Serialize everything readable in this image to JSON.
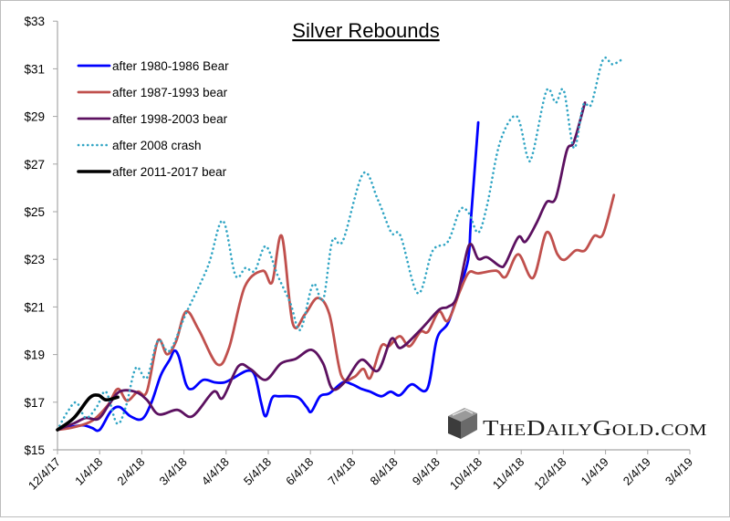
{
  "chart_data": {
    "type": "line",
    "title": "Silver Rebounds",
    "xlabel": "",
    "ylabel": "",
    "x_units": "months since 12/4/17",
    "xlim": [
      0,
      15
    ],
    "ylim": [
      15,
      33
    ],
    "x_ticks": [
      {
        "x": 0,
        "label": "12/4/17"
      },
      {
        "x": 1,
        "label": "1/4/18"
      },
      {
        "x": 2,
        "label": "2/4/18"
      },
      {
        "x": 3,
        "label": "3/4/18"
      },
      {
        "x": 4,
        "label": "4/4/18"
      },
      {
        "x": 5,
        "label": "5/4/18"
      },
      {
        "x": 6,
        "label": "6/4/18"
      },
      {
        "x": 7,
        "label": "7/4/18"
      },
      {
        "x": 8,
        "label": "8/4/18"
      },
      {
        "x": 9,
        "label": "9/4/18"
      },
      {
        "x": 10,
        "label": "10/4/18"
      },
      {
        "x": 11,
        "label": "11/4/18"
      },
      {
        "x": 12,
        "label": "12/4/18"
      },
      {
        "x": 13,
        "label": "1/4/19"
      },
      {
        "x": 14,
        "label": "2/4/19"
      },
      {
        "x": 15,
        "label": "3/4/19"
      }
    ],
    "y_ticks": [
      {
        "y": 15,
        "label": "$15"
      },
      {
        "y": 17,
        "label": "$17"
      },
      {
        "y": 19,
        "label": "$19"
      },
      {
        "y": 21,
        "label": "$21"
      },
      {
        "y": 23,
        "label": "$23"
      },
      {
        "y": 25,
        "label": "$25"
      },
      {
        "y": 27,
        "label": "$27"
      },
      {
        "y": 29,
        "label": "$29"
      },
      {
        "y": 31,
        "label": "$31"
      },
      {
        "y": 33,
        "label": "$33"
      }
    ],
    "grid": false,
    "legend_position": "top-left",
    "series": [
      {
        "name": "after 1980-1986 Bear",
        "color": "#0000ff",
        "style": "solid",
        "points": [
          [
            0,
            15.84
          ],
          [
            0.28,
            15.95
          ],
          [
            0.61,
            16.03
          ],
          [
            0.82,
            15.92
          ],
          [
            1.0,
            15.84
          ],
          [
            1.26,
            16.6
          ],
          [
            1.47,
            16.8
          ],
          [
            1.73,
            16.41
          ],
          [
            2.01,
            16.3
          ],
          [
            2.23,
            16.99
          ],
          [
            2.45,
            18.13
          ],
          [
            2.66,
            18.78
          ],
          [
            2.77,
            19.16
          ],
          [
            2.88,
            18.9
          ],
          [
            3.05,
            17.75
          ],
          [
            3.2,
            17.56
          ],
          [
            3.46,
            17.94
          ],
          [
            3.74,
            17.83
          ],
          [
            3.96,
            17.83
          ],
          [
            4.18,
            18.02
          ],
          [
            4.5,
            18.32
          ],
          [
            4.68,
            18.13
          ],
          [
            4.83,
            16.99
          ],
          [
            4.94,
            16.41
          ],
          [
            5.09,
            17.18
          ],
          [
            5.26,
            17.25
          ],
          [
            5.69,
            17.21
          ],
          [
            5.91,
            16.8
          ],
          [
            6.02,
            16.6
          ],
          [
            6.23,
            17.25
          ],
          [
            6.45,
            17.37
          ],
          [
            6.77,
            17.83
          ],
          [
            6.99,
            17.75
          ],
          [
            7.21,
            17.56
          ],
          [
            7.42,
            17.44
          ],
          [
            7.68,
            17.25
          ],
          [
            7.9,
            17.44
          ],
          [
            8.12,
            17.29
          ],
          [
            8.4,
            17.75
          ],
          [
            8.77,
            17.56
          ],
          [
            9.0,
            19.66
          ],
          [
            9.26,
            20.31
          ],
          [
            9.48,
            21.46
          ],
          [
            9.74,
            22.98
          ],
          [
            9.81,
            24.74
          ],
          [
            9.98,
            28.75
          ]
        ]
      },
      {
        "name": "after 1987-1993 bear",
        "color": "#c0504d",
        "style": "solid",
        "points": [
          [
            0,
            15.84
          ],
          [
            0.39,
            15.95
          ],
          [
            0.82,
            16.22
          ],
          [
            1.19,
            16.87
          ],
          [
            1.43,
            17.56
          ],
          [
            1.65,
            17.06
          ],
          [
            1.9,
            17.44
          ],
          [
            2.12,
            17.44
          ],
          [
            2.38,
            19.58
          ],
          [
            2.6,
            19.01
          ],
          [
            2.81,
            19.54
          ],
          [
            3.05,
            20.81
          ],
          [
            3.35,
            20.04
          ],
          [
            3.79,
            18.59
          ],
          [
            4.07,
            19.28
          ],
          [
            4.44,
            21.84
          ],
          [
            4.87,
            22.52
          ],
          [
            5.09,
            22.03
          ],
          [
            5.32,
            23.98
          ],
          [
            5.58,
            20.31
          ],
          [
            5.87,
            20.69
          ],
          [
            6.17,
            21.38
          ],
          [
            6.45,
            20.69
          ],
          [
            6.73,
            18.13
          ],
          [
            7.03,
            18.05
          ],
          [
            7.25,
            18.4
          ],
          [
            7.42,
            18.02
          ],
          [
            7.68,
            19.35
          ],
          [
            7.86,
            19.35
          ],
          [
            8.12,
            19.77
          ],
          [
            8.35,
            19.35
          ],
          [
            8.61,
            19.96
          ],
          [
            8.79,
            19.96
          ],
          [
            9.05,
            20.81
          ],
          [
            9.26,
            20.42
          ],
          [
            9.55,
            21.68
          ],
          [
            9.76,
            22.45
          ],
          [
            9.98,
            22.41
          ],
          [
            10.41,
            22.52
          ],
          [
            10.63,
            22.26
          ],
          [
            10.93,
            23.21
          ],
          [
            11.28,
            22.22
          ],
          [
            11.6,
            24.13
          ],
          [
            11.86,
            23.21
          ],
          [
            12.03,
            22.98
          ],
          [
            12.29,
            23.37
          ],
          [
            12.51,
            23.37
          ],
          [
            12.73,
            23.98
          ],
          [
            12.94,
            24.05
          ],
          [
            13.2,
            25.7
          ]
        ]
      },
      {
        "name": "after 1998-2003 bear",
        "color": "#5c1160",
        "style": "solid",
        "points": [
          [
            0,
            15.84
          ],
          [
            0.39,
            16.11
          ],
          [
            0.67,
            16.34
          ],
          [
            0.97,
            16.3
          ],
          [
            1.21,
            16.87
          ],
          [
            1.47,
            17.44
          ],
          [
            1.84,
            17.44
          ],
          [
            2.12,
            17.1
          ],
          [
            2.4,
            16.49
          ],
          [
            2.84,
            16.68
          ],
          [
            3.2,
            16.41
          ],
          [
            3.7,
            17.44
          ],
          [
            3.92,
            17.18
          ],
          [
            4.29,
            18.51
          ],
          [
            4.57,
            18.4
          ],
          [
            4.94,
            17.94
          ],
          [
            5.3,
            18.63
          ],
          [
            5.65,
            18.82
          ],
          [
            6.02,
            19.2
          ],
          [
            6.3,
            18.63
          ],
          [
            6.52,
            17.56
          ],
          [
            6.82,
            17.86
          ],
          [
            7.21,
            18.78
          ],
          [
            7.6,
            18.32
          ],
          [
            7.92,
            19.66
          ],
          [
            8.14,
            19.28
          ],
          [
            8.61,
            20.04
          ],
          [
            9.05,
            20.88
          ],
          [
            9.26,
            21.0
          ],
          [
            9.48,
            21.46
          ],
          [
            9.76,
            23.59
          ],
          [
            9.98,
            23.02
          ],
          [
            10.19,
            23.09
          ],
          [
            10.5,
            22.71
          ],
          [
            10.63,
            22.83
          ],
          [
            10.93,
            23.93
          ],
          [
            11.1,
            23.74
          ],
          [
            11.36,
            24.51
          ],
          [
            11.6,
            25.39
          ],
          [
            11.82,
            25.58
          ],
          [
            12.08,
            27.56
          ],
          [
            12.25,
            27.94
          ],
          [
            12.51,
            29.58
          ]
        ]
      },
      {
        "name": "after 2008 crash",
        "color": "#31a5c4",
        "style": "dotted",
        "points": [
          [
            0,
            15.84
          ],
          [
            0.24,
            16.6
          ],
          [
            0.45,
            16.99
          ],
          [
            0.67,
            16.34
          ],
          [
            0.93,
            16.8
          ],
          [
            1.15,
            17.44
          ],
          [
            1.41,
            16.11
          ],
          [
            1.62,
            16.8
          ],
          [
            1.86,
            18.44
          ],
          [
            2.12,
            18.02
          ],
          [
            2.38,
            19.58
          ],
          [
            2.66,
            19.16
          ],
          [
            3.05,
            20.73
          ],
          [
            3.57,
            22.71
          ],
          [
            3.92,
            24.62
          ],
          [
            4.22,
            22.33
          ],
          [
            4.46,
            22.64
          ],
          [
            4.68,
            22.52
          ],
          [
            4.94,
            23.55
          ],
          [
            5.22,
            22.33
          ],
          [
            5.52,
            21.18
          ],
          [
            5.76,
            20.04
          ],
          [
            6.06,
            21.95
          ],
          [
            6.3,
            21.3
          ],
          [
            6.52,
            23.78
          ],
          [
            6.77,
            23.78
          ],
          [
            7.25,
            26.6
          ],
          [
            7.6,
            25.5
          ],
          [
            7.92,
            24.12
          ],
          [
            8.14,
            23.97
          ],
          [
            8.55,
            21.57
          ],
          [
            8.9,
            23.36
          ],
          [
            9.26,
            23.74
          ],
          [
            9.55,
            25.08
          ],
          [
            9.76,
            24.93
          ],
          [
            9.98,
            24.12
          ],
          [
            10.19,
            25.27
          ],
          [
            10.5,
            27.94
          ],
          [
            10.89,
            29.01
          ],
          [
            11.15,
            27.29
          ],
          [
            11.28,
            27.48
          ],
          [
            11.6,
            30.08
          ],
          [
            11.82,
            29.58
          ],
          [
            12.01,
            30.08
          ],
          [
            12.25,
            27.67
          ],
          [
            12.47,
            29.47
          ],
          [
            12.66,
            29.51
          ],
          [
            12.94,
            31.38
          ],
          [
            13.16,
            31.19
          ],
          [
            13.38,
            31.38
          ]
        ]
      },
      {
        "name": "after 2011-2017 bear",
        "color": "#000000",
        "style": "solid-thick",
        "points": [
          [
            0,
            15.84
          ],
          [
            0.39,
            16.34
          ],
          [
            0.76,
            17.18
          ],
          [
            0.97,
            17.29
          ],
          [
            1.15,
            17.1
          ],
          [
            1.43,
            17.21
          ]
        ]
      }
    ]
  },
  "watermark": {
    "text": "TheDailyGold.com"
  }
}
